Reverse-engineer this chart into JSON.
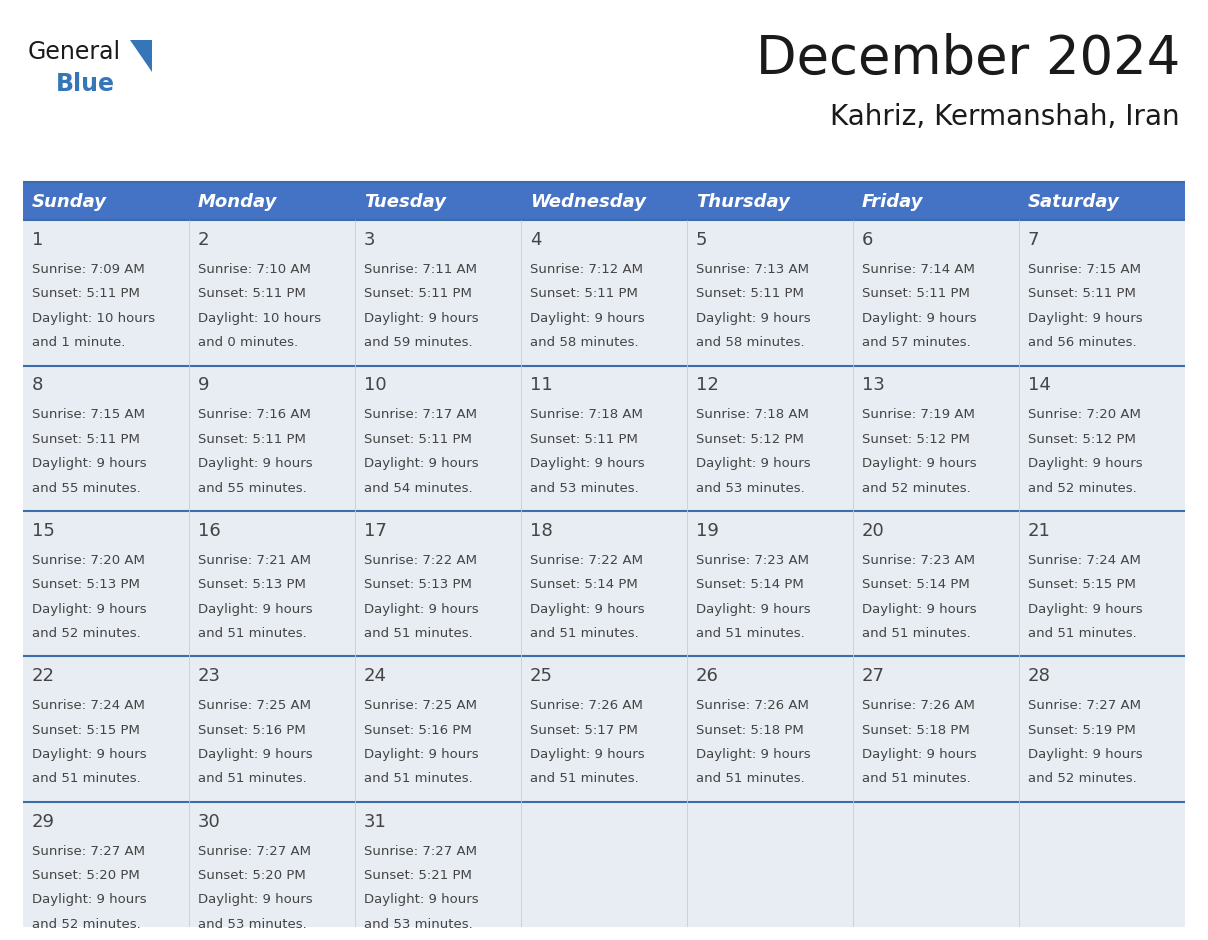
{
  "title": "December 2024",
  "subtitle": "Kahriz, Kermanshah, Iran",
  "header_color": "#4472C4",
  "header_text_color": "#FFFFFF",
  "cell_bg": "#E8EDF4",
  "cell_bg_white": "#FFFFFF",
  "day_names": [
    "Sunday",
    "Monday",
    "Tuesday",
    "Wednesday",
    "Thursday",
    "Friday",
    "Saturday"
  ],
  "days": [
    {
      "day": 1,
      "col": 0,
      "row": 0,
      "sunrise": "7:09 AM",
      "sunset": "5:11 PM",
      "daylight_h": "10 hours",
      "daylight_m": "and 1 minute."
    },
    {
      "day": 2,
      "col": 1,
      "row": 0,
      "sunrise": "7:10 AM",
      "sunset": "5:11 PM",
      "daylight_h": "10 hours",
      "daylight_m": "and 0 minutes."
    },
    {
      "day": 3,
      "col": 2,
      "row": 0,
      "sunrise": "7:11 AM",
      "sunset": "5:11 PM",
      "daylight_h": "9 hours",
      "daylight_m": "and 59 minutes."
    },
    {
      "day": 4,
      "col": 3,
      "row": 0,
      "sunrise": "7:12 AM",
      "sunset": "5:11 PM",
      "daylight_h": "9 hours",
      "daylight_m": "and 58 minutes."
    },
    {
      "day": 5,
      "col": 4,
      "row": 0,
      "sunrise": "7:13 AM",
      "sunset": "5:11 PM",
      "daylight_h": "9 hours",
      "daylight_m": "and 58 minutes."
    },
    {
      "day": 6,
      "col": 5,
      "row": 0,
      "sunrise": "7:14 AM",
      "sunset": "5:11 PM",
      "daylight_h": "9 hours",
      "daylight_m": "and 57 minutes."
    },
    {
      "day": 7,
      "col": 6,
      "row": 0,
      "sunrise": "7:15 AM",
      "sunset": "5:11 PM",
      "daylight_h": "9 hours",
      "daylight_m": "and 56 minutes."
    },
    {
      "day": 8,
      "col": 0,
      "row": 1,
      "sunrise": "7:15 AM",
      "sunset": "5:11 PM",
      "daylight_h": "9 hours",
      "daylight_m": "and 55 minutes."
    },
    {
      "day": 9,
      "col": 1,
      "row": 1,
      "sunrise": "7:16 AM",
      "sunset": "5:11 PM",
      "daylight_h": "9 hours",
      "daylight_m": "and 55 minutes."
    },
    {
      "day": 10,
      "col": 2,
      "row": 1,
      "sunrise": "7:17 AM",
      "sunset": "5:11 PM",
      "daylight_h": "9 hours",
      "daylight_m": "and 54 minutes."
    },
    {
      "day": 11,
      "col": 3,
      "row": 1,
      "sunrise": "7:18 AM",
      "sunset": "5:11 PM",
      "daylight_h": "9 hours",
      "daylight_m": "and 53 minutes."
    },
    {
      "day": 12,
      "col": 4,
      "row": 1,
      "sunrise": "7:18 AM",
      "sunset": "5:12 PM",
      "daylight_h": "9 hours",
      "daylight_m": "and 53 minutes."
    },
    {
      "day": 13,
      "col": 5,
      "row": 1,
      "sunrise": "7:19 AM",
      "sunset": "5:12 PM",
      "daylight_h": "9 hours",
      "daylight_m": "and 52 minutes."
    },
    {
      "day": 14,
      "col": 6,
      "row": 1,
      "sunrise": "7:20 AM",
      "sunset": "5:12 PM",
      "daylight_h": "9 hours",
      "daylight_m": "and 52 minutes."
    },
    {
      "day": 15,
      "col": 0,
      "row": 2,
      "sunrise": "7:20 AM",
      "sunset": "5:13 PM",
      "daylight_h": "9 hours",
      "daylight_m": "and 52 minutes."
    },
    {
      "day": 16,
      "col": 1,
      "row": 2,
      "sunrise": "7:21 AM",
      "sunset": "5:13 PM",
      "daylight_h": "9 hours",
      "daylight_m": "and 51 minutes."
    },
    {
      "day": 17,
      "col": 2,
      "row": 2,
      "sunrise": "7:22 AM",
      "sunset": "5:13 PM",
      "daylight_h": "9 hours",
      "daylight_m": "and 51 minutes."
    },
    {
      "day": 18,
      "col": 3,
      "row": 2,
      "sunrise": "7:22 AM",
      "sunset": "5:14 PM",
      "daylight_h": "9 hours",
      "daylight_m": "and 51 minutes."
    },
    {
      "day": 19,
      "col": 4,
      "row": 2,
      "sunrise": "7:23 AM",
      "sunset": "5:14 PM",
      "daylight_h": "9 hours",
      "daylight_m": "and 51 minutes."
    },
    {
      "day": 20,
      "col": 5,
      "row": 2,
      "sunrise": "7:23 AM",
      "sunset": "5:14 PM",
      "daylight_h": "9 hours",
      "daylight_m": "and 51 minutes."
    },
    {
      "day": 21,
      "col": 6,
      "row": 2,
      "sunrise": "7:24 AM",
      "sunset": "5:15 PM",
      "daylight_h": "9 hours",
      "daylight_m": "and 51 minutes."
    },
    {
      "day": 22,
      "col": 0,
      "row": 3,
      "sunrise": "7:24 AM",
      "sunset": "5:15 PM",
      "daylight_h": "9 hours",
      "daylight_m": "and 51 minutes."
    },
    {
      "day": 23,
      "col": 1,
      "row": 3,
      "sunrise": "7:25 AM",
      "sunset": "5:16 PM",
      "daylight_h": "9 hours",
      "daylight_m": "and 51 minutes."
    },
    {
      "day": 24,
      "col": 2,
      "row": 3,
      "sunrise": "7:25 AM",
      "sunset": "5:16 PM",
      "daylight_h": "9 hours",
      "daylight_m": "and 51 minutes."
    },
    {
      "day": 25,
      "col": 3,
      "row": 3,
      "sunrise": "7:26 AM",
      "sunset": "5:17 PM",
      "daylight_h": "9 hours",
      "daylight_m": "and 51 minutes."
    },
    {
      "day": 26,
      "col": 4,
      "row": 3,
      "sunrise": "7:26 AM",
      "sunset": "5:18 PM",
      "daylight_h": "9 hours",
      "daylight_m": "and 51 minutes."
    },
    {
      "day": 27,
      "col": 5,
      "row": 3,
      "sunrise": "7:26 AM",
      "sunset": "5:18 PM",
      "daylight_h": "9 hours",
      "daylight_m": "and 51 minutes."
    },
    {
      "day": 28,
      "col": 6,
      "row": 3,
      "sunrise": "7:27 AM",
      "sunset": "5:19 PM",
      "daylight_h": "9 hours",
      "daylight_m": "and 52 minutes."
    },
    {
      "day": 29,
      "col": 0,
      "row": 4,
      "sunrise": "7:27 AM",
      "sunset": "5:20 PM",
      "daylight_h": "9 hours",
      "daylight_m": "and 52 minutes."
    },
    {
      "day": 30,
      "col": 1,
      "row": 4,
      "sunrise": "7:27 AM",
      "sunset": "5:20 PM",
      "daylight_h": "9 hours",
      "daylight_m": "and 53 minutes."
    },
    {
      "day": 31,
      "col": 2,
      "row": 4,
      "sunrise": "7:27 AM",
      "sunset": "5:21 PM",
      "daylight_h": "9 hours",
      "daylight_m": "and 53 minutes."
    }
  ],
  "logo_color_general": "#1a1a1a",
  "logo_color_blue": "#3476B8",
  "title_fontsize": 38,
  "subtitle_fontsize": 20,
  "header_fontsize": 13,
  "day_number_fontsize": 13,
  "cell_text_fontsize": 9.5,
  "n_rows": 5,
  "n_cols": 7,
  "line_color": "#3A6EA8",
  "divider_color": "#3A6EA8"
}
